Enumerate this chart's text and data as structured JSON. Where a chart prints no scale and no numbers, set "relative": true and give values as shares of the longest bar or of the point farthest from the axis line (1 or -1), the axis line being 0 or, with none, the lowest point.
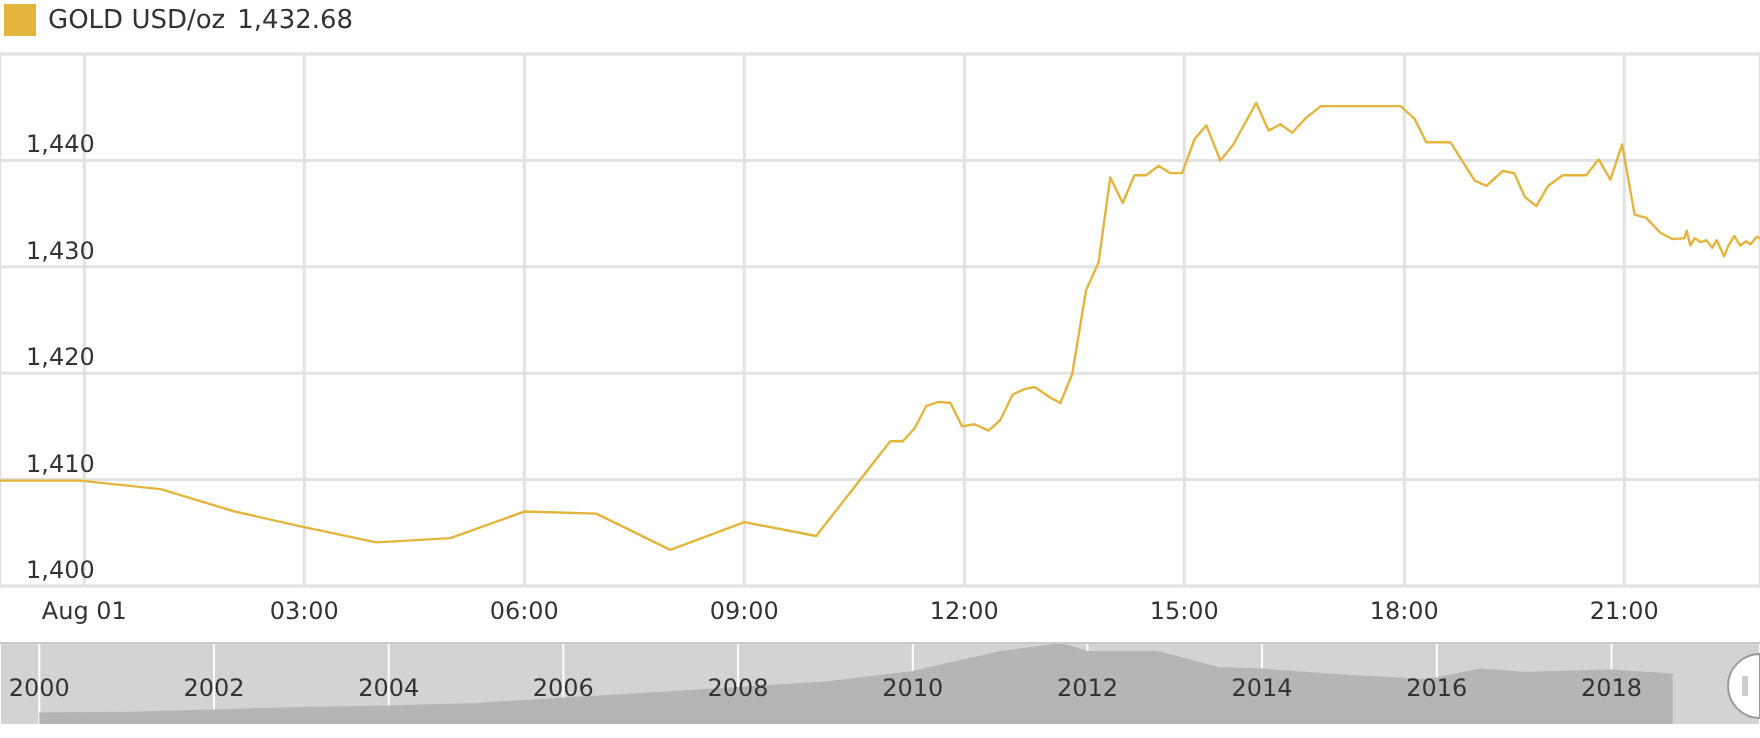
{
  "chart_data": [
    {
      "type": "line",
      "legend": "top left",
      "grid": true,
      "annotations": [
        "1,432.68"
      ],
      "xlim": [
        -1.15,
        22.85
      ],
      "xticks": [
        {
          "value": 0,
          "label": "Aug 01"
        },
        {
          "value": 3,
          "label": "03:00"
        },
        {
          "value": 6,
          "label": "06:00"
        },
        {
          "value": 9,
          "label": "09:00"
        },
        {
          "value": 12,
          "label": "12:00"
        },
        {
          "value": 15,
          "label": "15:00"
        },
        {
          "value": 18,
          "label": "18:00"
        },
        {
          "value": 21,
          "label": "21:00"
        }
      ],
      "ylim": [
        1400,
        1450
      ],
      "yticks": [
        {
          "value": 1400,
          "label": "1,400"
        },
        {
          "value": 1410,
          "label": "1,410"
        },
        {
          "value": 1420,
          "label": "1,420"
        },
        {
          "value": 1430,
          "label": "1,430"
        },
        {
          "value": 1440,
          "label": "1,440"
        },
        {
          "value": 1450,
          "label": null
        }
      ],
      "series": [
        {
          "name": "GOLD USD/oz",
          "color": "#e4b53e",
          "x": [
            -1.15,
            -0.06,
            1.04,
            2.05,
            2.95,
            3.98,
            4.99,
            6.0,
            6.98,
            7.99,
            9.0,
            9.98,
            10.99,
            11.16,
            11.32,
            11.48,
            11.65,
            11.81,
            11.97,
            12.14,
            12.33,
            12.49,
            12.66,
            12.82,
            12.96,
            13.15,
            13.31,
            13.47,
            13.66,
            13.83,
            13.99,
            14.16,
            14.32,
            14.48,
            14.65,
            14.81,
            14.97,
            15.14,
            15.3,
            15.49,
            15.66,
            15.98,
            16.15,
            16.31,
            16.47,
            16.66,
            16.86,
            17.95,
            18.14,
            18.3,
            18.63,
            18.96,
            19.12,
            19.34,
            19.5,
            19.64,
            19.8,
            19.96,
            20.16,
            20.48,
            20.65,
            20.81,
            20.97,
            21.14,
            21.3,
            21.49,
            21.66,
            21.82,
            21.85,
            21.9,
            21.96,
            22.04,
            22.12,
            22.2,
            22.26,
            22.36,
            22.42,
            22.5,
            22.58,
            22.66,
            22.72,
            22.8,
            22.85
          ],
          "values": [
            1409.9,
            1409.9,
            1409.1,
            1407.0,
            1405.6,
            1404.1,
            1404.5,
            1407.0,
            1406.8,
            1403.4,
            1406.0,
            1404.7,
            1413.6,
            1413.6,
            1414.8,
            1416.9,
            1417.3,
            1417.2,
            1415.0,
            1415.2,
            1414.6,
            1415.6,
            1418.0,
            1418.5,
            1418.7,
            1417.8,
            1417.2,
            1419.9,
            1427.8,
            1430.4,
            1438.4,
            1436.0,
            1438.6,
            1438.6,
            1439.5,
            1438.8,
            1438.8,
            1442.0,
            1443.3,
            1440.0,
            1441.4,
            1445.4,
            1442.8,
            1443.4,
            1442.6,
            1444.0,
            1445.1,
            1445.1,
            1443.9,
            1441.7,
            1441.7,
            1438.1,
            1437.6,
            1439.0,
            1438.8,
            1436.6,
            1435.7,
            1437.6,
            1438.6,
            1438.6,
            1440.1,
            1438.2,
            1441.5,
            1434.9,
            1434.6,
            1433.2,
            1432.6,
            1432.7,
            1433.4,
            1432.0,
            1432.7,
            1432.3,
            1432.5,
            1431.8,
            1432.5,
            1431.0,
            1432.0,
            1432.9,
            1432.0,
            1432.4,
            1432.1,
            1432.8,
            1432.7
          ]
        }
      ]
    },
    {
      "type": "area",
      "relative": true,
      "grid": "x",
      "xlim": [
        1999.55,
        2019.7
      ],
      "xticks": [
        2000,
        2002,
        2004,
        2006,
        2008,
        2010,
        2012,
        2014,
        2016,
        2018
      ],
      "series": [
        {
          "color": "#b5b5b5",
          "x": [
            2000,
            2001,
            2002,
            2003,
            2004,
            2005,
            2006,
            2007,
            2008,
            2009,
            2010,
            2011,
            2011.7,
            2012,
            2012.8,
            2013.5,
            2014,
            2015,
            2015.9,
            2016.5,
            2017,
            2018,
            2018.7
          ],
          "values": [
            0.13,
            0.14,
            0.17,
            0.2,
            0.22,
            0.25,
            0.32,
            0.38,
            0.45,
            0.52,
            0.65,
            0.9,
            1.0,
            0.9,
            0.9,
            0.7,
            0.68,
            0.6,
            0.55,
            0.68,
            0.64,
            0.67,
            0.62
          ]
        }
      ]
    }
  ]
}
